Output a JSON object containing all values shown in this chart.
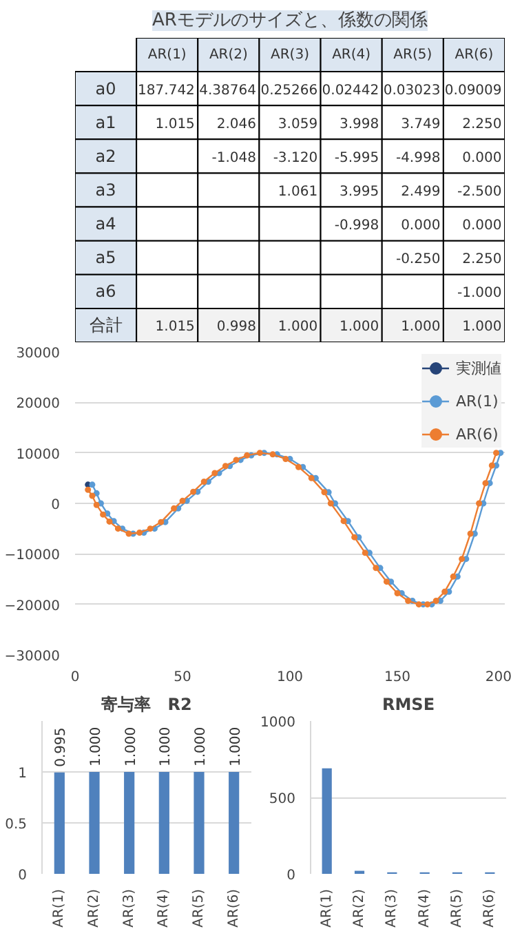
{
  "chart_data": [
    {
      "type": "heatmap",
      "title": "ARモデルのサイズと、係数の関係",
      "categories": [
        "AR(1)",
        "AR(2)",
        "AR(3)",
        "AR(4)",
        "AR(5)",
        "AR(6)"
      ],
      "y_categories": [
        "a0",
        "a1",
        "a2",
        "a3",
        "a4",
        "a5",
        "a6",
        "合計"
      ],
      "cells": [
        [
          187.742,
          4.38764,
          0.25266,
          0.02442,
          0.03023,
          0.09009
        ],
        [
          1.015,
          2.046,
          3.059,
          3.998,
          3.749,
          2.25
        ],
        [
          null,
          -1.048,
          -3.12,
          -5.995,
          -4.998,
          0
        ],
        [
          null,
          null,
          1.061,
          3.995,
          2.499,
          -2.5
        ],
        [
          null,
          null,
          null,
          -0.998,
          0,
          0
        ],
        [
          null,
          null,
          null,
          null,
          -0.25,
          2.25
        ],
        [
          null,
          null,
          null,
          null,
          null,
          -1
        ],
        [
          1.015,
          0.998,
          1,
          1,
          1,
          1
        ]
      ],
      "cell_labels": [
        [
          "187.742",
          "4.38764",
          "0.25266",
          "0.02442",
          "0.03023",
          "0.09009"
        ],
        [
          "1.015",
          "2.046",
          "3.059",
          "3.998",
          "3.749",
          "2.250"
        ],
        [
          null,
          "-1.048",
          "-3.120",
          "-5.995",
          "-4.998",
          "0.000"
        ],
        [
          null,
          null,
          "1.061",
          "3.995",
          "2.499",
          "-2.500"
        ],
        [
          null,
          null,
          null,
          "-0.998",
          "0.000",
          "0.000"
        ],
        [
          null,
          null,
          null,
          null,
          "-0.250",
          "2.250"
        ],
        [
          null,
          null,
          null,
          null,
          null,
          "-1.000"
        ],
        [
          "1.015",
          "0.998",
          "1.000",
          "1.000",
          "1.000",
          "1.000"
        ]
      ]
    },
    {
      "type": "line",
      "marker": "circle",
      "grid": "y",
      "legend": "top right",
      "x": [
        6,
        8,
        10,
        13,
        16,
        20,
        25,
        30,
        35,
        40,
        46,
        50,
        55,
        60,
        65,
        70,
        75,
        80,
        86,
        92,
        98,
        104,
        110,
        116,
        119,
        125,
        130,
        135,
        140,
        145,
        150,
        155,
        160,
        164,
        168,
        172,
        176,
        180,
        184,
        188,
        191,
        194,
        196
      ],
      "xlim": [
        0,
        200
      ],
      "xticks": [
        0,
        50,
        100,
        150,
        200
      ],
      "ylim": [
        -30000,
        30000
      ],
      "yticks": [
        -30000,
        -20000,
        -10000,
        0,
        10000,
        20000,
        30000
      ],
      "series": [
        {
          "name": "実測値",
          "color": "#264478",
          "values": [
            3700,
            null,
            null,
            null,
            null,
            null,
            null,
            null,
            null,
            null,
            null,
            null,
            null,
            null,
            null,
            null,
            null,
            null,
            null,
            null,
            null,
            null,
            null,
            null,
            null,
            null,
            null,
            null,
            null,
            null,
            null,
            null,
            null,
            null,
            null,
            null,
            null,
            null,
            null,
            null,
            null,
            null,
            null
          ]
        },
        {
          "name": "AR(1)",
          "color": "#5b9bd5",
          "x": [
            8,
            10,
            12,
            15,
            18,
            22,
            27,
            32,
            37,
            42,
            48,
            52,
            57,
            62,
            67,
            72,
            77,
            82,
            88,
            94,
            100,
            106,
            112,
            118,
            121,
            127,
            132,
            137,
            142,
            147,
            152,
            157,
            162,
            166,
            170,
            174,
            178,
            182,
            186,
            190,
            193,
            196,
            198
          ],
          "values": [
            3700,
            2000,
            0,
            -2000,
            -3500,
            -5000,
            -6000,
            -5800,
            -5000,
            -3700,
            -1000,
            500,
            2300,
            4300,
            6000,
            7400,
            8600,
            9500,
            10000,
            9700,
            8800,
            7200,
            5000,
            2200,
            0,
            -3500,
            -6700,
            -9800,
            -12800,
            -15500,
            -17800,
            -19300,
            -20000,
            -20000,
            -19300,
            -17500,
            -14500,
            -11000,
            -6000,
            0,
            4000,
            7500,
            10000
          ]
        },
        {
          "name": "AR(6)",
          "color": "#ed7d31",
          "values": [
            2700,
            1500,
            -300,
            -2200,
            -3600,
            -5000,
            -6000,
            -5800,
            -5000,
            -3700,
            -1000,
            500,
            2300,
            4300,
            6000,
            7400,
            8600,
            9500,
            10000,
            9700,
            8800,
            7200,
            5000,
            2200,
            0,
            -3500,
            -6700,
            -9800,
            -12800,
            -15500,
            -17800,
            -19300,
            -20000,
            -20000,
            -19300,
            -17500,
            -14500,
            -11000,
            -6000,
            0,
            4000,
            7500,
            10000
          ]
        }
      ]
    },
    {
      "type": "bar",
      "title": "寄与率　R2",
      "grid": "y",
      "color": "#4f81bd",
      "categories": [
        "AR(1)",
        "AR(2)",
        "AR(3)",
        "AR(4)",
        "AR(5)",
        "AR(6)"
      ],
      "values": [
        0.995,
        1,
        1,
        1,
        1,
        1
      ],
      "value_labels": [
        "0.995",
        "1.000",
        "1.000",
        "1.000",
        "1.000",
        "1.000"
      ],
      "ylim": [
        0,
        1.5
      ],
      "yticks": [
        0,
        0.5,
        1
      ]
    },
    {
      "type": "bar",
      "title": "RMSE",
      "grid": "y",
      "color": "#4f81bd",
      "categories": [
        "AR(1)",
        "AR(2)",
        "AR(3)",
        "AR(4)",
        "AR(5)",
        "AR(6)"
      ],
      "values": [
        690,
        20,
        10,
        10,
        10,
        10
      ],
      "ylim": [
        0,
        1000
      ],
      "yticks": [
        0,
        500,
        1000
      ]
    }
  ]
}
